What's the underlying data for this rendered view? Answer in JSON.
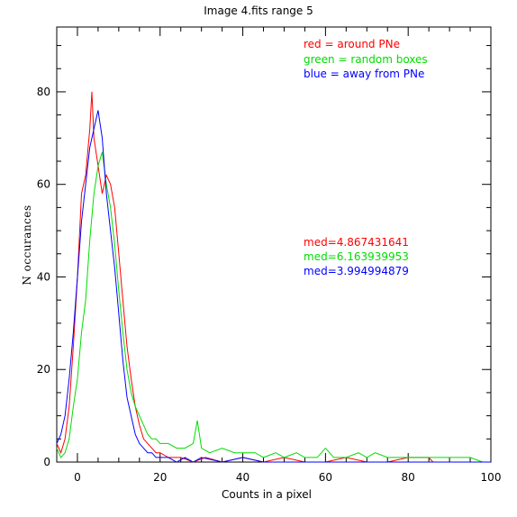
{
  "chart_data": {
    "type": "line",
    "title": "Image 4.fits   range 5",
    "xlabel": "Counts in a pixel",
    "ylabel": "N occurances",
    "xlim": [
      -5,
      100
    ],
    "ylim": [
      0,
      94
    ],
    "x_ticks": [
      0,
      20,
      40,
      60,
      80,
      100
    ],
    "y_ticks": [
      0,
      20,
      40,
      60,
      80
    ],
    "grid": false,
    "legend_placement": "top-right",
    "series": [
      {
        "name": "red = around PNe",
        "color": "#ff0000",
        "points": [
          [
            -5,
            4
          ],
          [
            -4,
            2
          ],
          [
            -3,
            5
          ],
          [
            -2,
            12
          ],
          [
            -1,
            25
          ],
          [
            0,
            40
          ],
          [
            1,
            58
          ],
          [
            2,
            62
          ],
          [
            3,
            72
          ],
          [
            3.5,
            80
          ],
          [
            4,
            70
          ],
          [
            5,
            64
          ],
          [
            6,
            58
          ],
          [
            7,
            62
          ],
          [
            8,
            60
          ],
          [
            9,
            55
          ],
          [
            10,
            45
          ],
          [
            11,
            35
          ],
          [
            12,
            25
          ],
          [
            13,
            18
          ],
          [
            14,
            12
          ],
          [
            15,
            8
          ],
          [
            16,
            5
          ],
          [
            17,
            4
          ],
          [
            18,
            3
          ],
          [
            19,
            2
          ],
          [
            20,
            2
          ],
          [
            22,
            1
          ],
          [
            25,
            1
          ],
          [
            28,
            0
          ],
          [
            31,
            1
          ],
          [
            35,
            0
          ],
          [
            40,
            1
          ],
          [
            45,
            0
          ],
          [
            50,
            1
          ],
          [
            55,
            0
          ],
          [
            60,
            0
          ],
          [
            65,
            1
          ],
          [
            70,
            0
          ],
          [
            75,
            0
          ],
          [
            80,
            1
          ],
          [
            85,
            1
          ],
          [
            86,
            0
          ],
          [
            100,
            0
          ]
        ]
      },
      {
        "name": "green = random boxes",
        "color": "#00dd00",
        "points": [
          [
            -5,
            3
          ],
          [
            -4,
            1
          ],
          [
            -3,
            2
          ],
          [
            -2,
            5
          ],
          [
            -1,
            12
          ],
          [
            0,
            18
          ],
          [
            1,
            28
          ],
          [
            2,
            35
          ],
          [
            3,
            48
          ],
          [
            4,
            58
          ],
          [
            5,
            64
          ],
          [
            6,
            67
          ],
          [
            7,
            60
          ],
          [
            8,
            55
          ],
          [
            9,
            47
          ],
          [
            10,
            37
          ],
          [
            11,
            28
          ],
          [
            12,
            20
          ],
          [
            13,
            15
          ],
          [
            14,
            12
          ],
          [
            15,
            10
          ],
          [
            16,
            8
          ],
          [
            17,
            6
          ],
          [
            18,
            5
          ],
          [
            19,
            5
          ],
          [
            20,
            4
          ],
          [
            22,
            4
          ],
          [
            24,
            3
          ],
          [
            26,
            3
          ],
          [
            28,
            4
          ],
          [
            29,
            9
          ],
          [
            30,
            3
          ],
          [
            32,
            2
          ],
          [
            35,
            3
          ],
          [
            38,
            2
          ],
          [
            40,
            2
          ],
          [
            43,
            2
          ],
          [
            45,
            1
          ],
          [
            48,
            2
          ],
          [
            50,
            1
          ],
          [
            53,
            2
          ],
          [
            55,
            1
          ],
          [
            58,
            1
          ],
          [
            60,
            3
          ],
          [
            62,
            1
          ],
          [
            65,
            1
          ],
          [
            68,
            2
          ],
          [
            70,
            1
          ],
          [
            72,
            2
          ],
          [
            75,
            1
          ],
          [
            78,
            1
          ],
          [
            80,
            1
          ],
          [
            83,
            1
          ],
          [
            85,
            1
          ],
          [
            88,
            1
          ],
          [
            90,
            1
          ],
          [
            93,
            1
          ],
          [
            95,
            1
          ],
          [
            98,
            0
          ],
          [
            100,
            0
          ]
        ]
      },
      {
        "name": "blue = away from PNe",
        "color": "#0000ff",
        "points": [
          [
            -5,
            4
          ],
          [
            -4,
            6
          ],
          [
            -3,
            10
          ],
          [
            -2,
            18
          ],
          [
            -1,
            28
          ],
          [
            0,
            40
          ],
          [
            1,
            52
          ],
          [
            2,
            60
          ],
          [
            3,
            68
          ],
          [
            4,
            72
          ],
          [
            5,
            76
          ],
          [
            6,
            70
          ],
          [
            7,
            58
          ],
          [
            8,
            50
          ],
          [
            9,
            42
          ],
          [
            10,
            32
          ],
          [
            11,
            22
          ],
          [
            12,
            14
          ],
          [
            13,
            10
          ],
          [
            14,
            6
          ],
          [
            15,
            4
          ],
          [
            16,
            3
          ],
          [
            17,
            2
          ],
          [
            18,
            2
          ],
          [
            19,
            1
          ],
          [
            20,
            1
          ],
          [
            22,
            1
          ],
          [
            24,
            0
          ],
          [
            26,
            1
          ],
          [
            28,
            0
          ],
          [
            30,
            1
          ],
          [
            35,
            0
          ],
          [
            40,
            1
          ],
          [
            45,
            0
          ],
          [
            100,
            0
          ]
        ]
      }
    ],
    "annotations": [
      {
        "text": "med=4.867431641",
        "color": "#ff0000"
      },
      {
        "text": "med=6.163939953",
        "color": "#00dd00"
      },
      {
        "text": "med=3.994994879",
        "color": "#0000ff"
      }
    ]
  }
}
